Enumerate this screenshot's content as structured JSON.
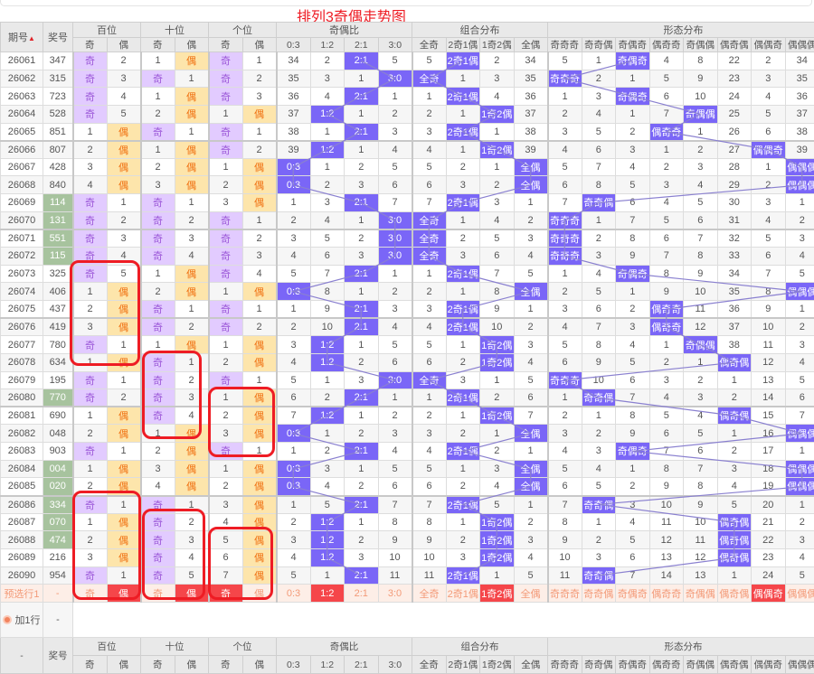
{
  "title": "排列3奇偶走势图",
  "header": {
    "issue": "期号",
    "number": "奖号",
    "groups": [
      "百位",
      "十位",
      "个位",
      "奇偶比",
      "组合分布",
      "形态分布"
    ],
    "sub": [
      "奇",
      "偶",
      "奇",
      "偶",
      "奇",
      "偶",
      "0:3",
      "1:2",
      "2:1",
      "3:0",
      "全奇",
      "2奇1偶",
      "1奇2偶",
      "全偶",
      "奇奇奇",
      "奇奇偶",
      "奇偶奇",
      "偶奇奇",
      "奇偶偶",
      "偶奇偶",
      "偶偶奇",
      "偶偶偶"
    ]
  },
  "colors": {
    "odd_bg": "#e2cbff",
    "even_bg": "#fde5ab",
    "hit": "#7a66f7",
    "repeat_number": "#a7c39e",
    "selected": "#f5464a",
    "title": "#ee1c24",
    "annotation": "#ee1c24"
  },
  "rows": [
    {
      "issue": "26061",
      "number": "347",
      "cells": [
        "奇",
        "2",
        "1",
        "偶",
        "奇",
        "1",
        "34",
        "2",
        "2:1",
        "5",
        "5",
        "2奇1偶",
        "2",
        "34",
        "5",
        "1",
        "奇偶奇",
        "4",
        "8",
        "22",
        "2",
        "34"
      ]
    },
    {
      "issue": "26062",
      "number": "315",
      "cells": [
        "奇",
        "3",
        "奇",
        "1",
        "奇",
        "2",
        "35",
        "3",
        "1",
        "3:0",
        "全奇",
        "1",
        "3",
        "35",
        "奇奇奇",
        "2",
        "1",
        "5",
        "9",
        "23",
        "3",
        "35"
      ]
    },
    {
      "issue": "26063",
      "number": "723",
      "cells": [
        "奇",
        "4",
        "1",
        "偶",
        "奇",
        "3",
        "36",
        "4",
        "2:1",
        "1",
        "1",
        "2奇1偶",
        "4",
        "36",
        "1",
        "3",
        "奇偶奇",
        "6",
        "10",
        "24",
        "4",
        "36"
      ]
    },
    {
      "issue": "26064",
      "number": "528",
      "cells": [
        "奇",
        "5",
        "2",
        "偶",
        "1",
        "偶",
        "37",
        "1:2",
        "1",
        "2",
        "2",
        "1",
        "1奇2偶",
        "37",
        "2",
        "4",
        "1",
        "7",
        "奇偶偶",
        "25",
        "5",
        "37"
      ]
    },
    {
      "issue": "26065",
      "number": "851",
      "cells": [
        "1",
        "偶",
        "奇",
        "1",
        "奇",
        "1",
        "38",
        "1",
        "2:1",
        "3",
        "3",
        "2奇1偶",
        "1",
        "38",
        "3",
        "5",
        "2",
        "偶奇奇",
        "1",
        "26",
        "6",
        "38"
      ]
    },
    {
      "issue": "26066",
      "number": "807",
      "cells": [
        "2",
        "偶",
        "1",
        "偶",
        "奇",
        "2",
        "39",
        "1:2",
        "1",
        "4",
        "4",
        "1",
        "1奇2偶",
        "39",
        "4",
        "6",
        "3",
        "1",
        "2",
        "27",
        "偶偶奇",
        "39"
      ]
    },
    {
      "issue": "26067",
      "number": "428",
      "cells": [
        "3",
        "偶",
        "2",
        "偶",
        "1",
        "偶",
        "0:3",
        "1",
        "2",
        "5",
        "5",
        "2",
        "1",
        "全偶",
        "5",
        "7",
        "4",
        "2",
        "3",
        "28",
        "1",
        "偶偶偶"
      ]
    },
    {
      "issue": "26068",
      "number": "840",
      "cells": [
        "4",
        "偶",
        "3",
        "偶",
        "2",
        "偶",
        "0:3",
        "2",
        "3",
        "6",
        "6",
        "3",
        "2",
        "全偶",
        "6",
        "8",
        "5",
        "3",
        "4",
        "29",
        "2",
        "偶偶偶"
      ]
    },
    {
      "issue": "26069",
      "number": "114",
      "repeat": true,
      "cells": [
        "奇",
        "1",
        "奇",
        "1",
        "3",
        "偶",
        "1",
        "3",
        "2:1",
        "7",
        "7",
        "2奇1偶",
        "3",
        "1",
        "7",
        "奇奇偶",
        "6",
        "4",
        "5",
        "30",
        "3",
        "1"
      ]
    },
    {
      "issue": "26070",
      "number": "131",
      "repeat": true,
      "cells": [
        "奇",
        "2",
        "奇",
        "2",
        "奇",
        "1",
        "2",
        "4",
        "1",
        "3:0",
        "全奇",
        "1",
        "4",
        "2",
        "奇奇奇",
        "1",
        "7",
        "5",
        "6",
        "31",
        "4",
        "2"
      ]
    },
    {
      "issue": "26071",
      "number": "551",
      "repeat": true,
      "cells": [
        "奇",
        "3",
        "奇",
        "3",
        "奇",
        "2",
        "3",
        "5",
        "2",
        "3:0",
        "全奇",
        "2",
        "5",
        "3",
        "奇奇奇",
        "2",
        "8",
        "6",
        "7",
        "32",
        "5",
        "3"
      ]
    },
    {
      "issue": "26072",
      "number": "115",
      "repeat": true,
      "cells": [
        "奇",
        "4",
        "奇",
        "4",
        "奇",
        "3",
        "4",
        "6",
        "3",
        "3:0",
        "全奇",
        "3",
        "6",
        "4",
        "奇奇奇",
        "3",
        "9",
        "7",
        "8",
        "33",
        "6",
        "4"
      ]
    },
    {
      "issue": "26073",
      "number": "325",
      "cells": [
        "奇",
        "5",
        "1",
        "偶",
        "奇",
        "4",
        "5",
        "7",
        "2:1",
        "1",
        "1",
        "2奇1偶",
        "7",
        "5",
        "1",
        "4",
        "奇偶奇",
        "8",
        "9",
        "34",
        "7",
        "5"
      ]
    },
    {
      "issue": "26074",
      "number": "406",
      "cells": [
        "1",
        "偶",
        "2",
        "偶",
        "1",
        "偶",
        "0:3",
        "8",
        "1",
        "2",
        "2",
        "1",
        "8",
        "全偶",
        "2",
        "5",
        "1",
        "9",
        "10",
        "35",
        "8",
        "偶偶偶"
      ]
    },
    {
      "issue": "26075",
      "number": "437",
      "cells": [
        "2",
        "偶",
        "奇",
        "1",
        "奇",
        "1",
        "1",
        "9",
        "2:1",
        "3",
        "3",
        "2奇1偶",
        "9",
        "1",
        "3",
        "6",
        "2",
        "偶奇奇",
        "11",
        "36",
        "9",
        "1"
      ]
    },
    {
      "issue": "26076",
      "number": "419",
      "cells": [
        "3",
        "偶",
        "奇",
        "2",
        "奇",
        "2",
        "2",
        "10",
        "2:1",
        "4",
        "4",
        "2奇1偶",
        "10",
        "2",
        "4",
        "7",
        "3",
        "偶奇奇",
        "12",
        "37",
        "10",
        "2"
      ]
    },
    {
      "issue": "26077",
      "number": "780",
      "cells": [
        "奇",
        "1",
        "1",
        "偶",
        "1",
        "偶",
        "3",
        "1:2",
        "1",
        "5",
        "5",
        "1",
        "1奇2偶",
        "3",
        "5",
        "8",
        "4",
        "1",
        "奇偶偶",
        "38",
        "11",
        "3"
      ]
    },
    {
      "issue": "26078",
      "number": "634",
      "cells": [
        "1",
        "偶",
        "奇",
        "1",
        "2",
        "偶",
        "4",
        "1:2",
        "2",
        "6",
        "6",
        "2",
        "1奇2偶",
        "4",
        "6",
        "9",
        "5",
        "2",
        "1",
        "偶奇偶",
        "12",
        "4"
      ]
    },
    {
      "issue": "26079",
      "number": "195",
      "cells": [
        "奇",
        "1",
        "奇",
        "2",
        "奇",
        "1",
        "5",
        "1",
        "3",
        "3:0",
        "全奇",
        "3",
        "1",
        "5",
        "奇奇奇",
        "10",
        "6",
        "3",
        "2",
        "1",
        "13",
        "5"
      ]
    },
    {
      "issue": "26080",
      "number": "770",
      "repeat": true,
      "cells": [
        "奇",
        "2",
        "奇",
        "3",
        "1",
        "偶",
        "6",
        "2",
        "2:1",
        "1",
        "1",
        "2奇1偶",
        "2",
        "6",
        "1",
        "奇奇偶",
        "7",
        "4",
        "3",
        "2",
        "14",
        "6"
      ]
    },
    {
      "issue": "26081",
      "number": "690",
      "cells": [
        "1",
        "偶",
        "奇",
        "4",
        "2",
        "偶",
        "7",
        "1:2",
        "1",
        "2",
        "2",
        "1",
        "1奇2偶",
        "7",
        "2",
        "1",
        "8",
        "5",
        "4",
        "偶奇偶",
        "15",
        "7"
      ]
    },
    {
      "issue": "26082",
      "number": "048",
      "cells": [
        "2",
        "偶",
        "1",
        "偶",
        "3",
        "偶",
        "0:3",
        "1",
        "2",
        "3",
        "3",
        "2",
        "1",
        "全偶",
        "3",
        "2",
        "9",
        "6",
        "5",
        "1",
        "16",
        "偶偶偶"
      ]
    },
    {
      "issue": "26083",
      "number": "903",
      "cells": [
        "奇",
        "1",
        "2",
        "偶",
        "奇",
        "1",
        "1",
        "2",
        "2:1",
        "4",
        "4",
        "2奇1偶",
        "2",
        "1",
        "4",
        "3",
        "奇偶奇",
        "7",
        "6",
        "2",
        "17",
        "1"
      ]
    },
    {
      "issue": "26084",
      "number": "004",
      "repeat": true,
      "cells": [
        "1",
        "偶",
        "3",
        "偶",
        "1",
        "偶",
        "0:3",
        "3",
        "1",
        "5",
        "5",
        "1",
        "3",
        "全偶",
        "5",
        "4",
        "1",
        "8",
        "7",
        "3",
        "18",
        "偶偶偶"
      ]
    },
    {
      "issue": "26085",
      "number": "020",
      "repeat": true,
      "cells": [
        "2",
        "偶",
        "4",
        "偶",
        "2",
        "偶",
        "0:3",
        "4",
        "2",
        "6",
        "6",
        "2",
        "4",
        "全偶",
        "6",
        "5",
        "2",
        "9",
        "8",
        "4",
        "19",
        "偶偶偶"
      ]
    },
    {
      "issue": "26086",
      "number": "334",
      "repeat": true,
      "cells": [
        "奇",
        "1",
        "奇",
        "1",
        "3",
        "偶",
        "1",
        "5",
        "2:1",
        "7",
        "7",
        "2奇1偶",
        "5",
        "1",
        "7",
        "奇奇偶",
        "3",
        "10",
        "9",
        "5",
        "20",
        "1"
      ]
    },
    {
      "issue": "26087",
      "number": "070",
      "repeat": true,
      "cells": [
        "1",
        "偶",
        "奇",
        "2",
        "4",
        "偶",
        "2",
        "1:2",
        "1",
        "8",
        "8",
        "1",
        "1奇2偶",
        "2",
        "8",
        "1",
        "4",
        "11",
        "10",
        "偶奇偶",
        "21",
        "2"
      ]
    },
    {
      "issue": "26088",
      "number": "474",
      "repeat": true,
      "cells": [
        "2",
        "偶",
        "奇",
        "3",
        "5",
        "偶",
        "3",
        "1:2",
        "2",
        "9",
        "9",
        "2",
        "1奇2偶",
        "3",
        "9",
        "2",
        "5",
        "12",
        "11",
        "偶奇偶",
        "22",
        "3"
      ]
    },
    {
      "issue": "26089",
      "number": "216",
      "cells": [
        "3",
        "偶",
        "奇",
        "4",
        "6",
        "偶",
        "4",
        "1:2",
        "3",
        "10",
        "10",
        "3",
        "1奇2偶",
        "4",
        "10",
        "3",
        "6",
        "13",
        "12",
        "偶奇偶",
        "23",
        "4"
      ]
    },
    {
      "issue": "26090",
      "number": "954",
      "cells": [
        "奇",
        "1",
        "奇",
        "5",
        "7",
        "偶",
        "5",
        "1",
        "2:1",
        "11",
        "11",
        "2奇1偶",
        "1",
        "5",
        "11",
        "奇奇偶",
        "7",
        "14",
        "13",
        "1",
        "24",
        "5"
      ]
    }
  ],
  "preselect": {
    "label": "预选行1",
    "number": "-",
    "selected": [
      1,
      3,
      4,
      7,
      12,
      20
    ]
  },
  "add_row": {
    "label": "加1行",
    "number": "-"
  },
  "footer": {
    "issue": "-",
    "number": "奖号"
  }
}
